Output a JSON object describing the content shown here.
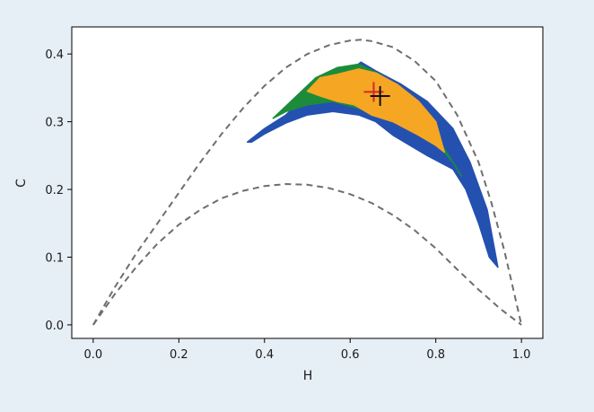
{
  "chart_data": {
    "type": "scatter",
    "xlabel": "H",
    "ylabel": "C",
    "xlim": [
      -0.05,
      1.05
    ],
    "ylim": [
      -0.02,
      0.44
    ],
    "xticks": [
      0.0,
      0.2,
      0.4,
      0.6,
      0.8,
      1.0
    ],
    "xtick_labels": [
      "0.0",
      "0.2",
      "0.4",
      "0.6",
      "0.8",
      "1.0"
    ],
    "yticks": [
      0.0,
      0.1,
      0.2,
      0.3,
      0.4
    ],
    "ytick_labels": [
      "0.0",
      "0.1",
      "0.2",
      "0.3",
      "0.4"
    ],
    "grid": false,
    "legend": false,
    "bounds": [
      {
        "color": "#6e6e6e",
        "dashed": true,
        "points": [
          [
            0.0,
            0.0
          ],
          [
            0.05,
            0.055
          ],
          [
            0.1,
            0.105
          ],
          [
            0.15,
            0.15
          ],
          [
            0.2,
            0.195
          ],
          [
            0.25,
            0.24
          ],
          [
            0.3,
            0.282
          ],
          [
            0.35,
            0.32
          ],
          [
            0.4,
            0.353
          ],
          [
            0.45,
            0.38
          ],
          [
            0.5,
            0.4
          ],
          [
            0.55,
            0.413
          ],
          [
            0.6,
            0.42
          ],
          [
            0.625,
            0.421
          ],
          [
            0.65,
            0.419
          ],
          [
            0.7,
            0.41
          ],
          [
            0.75,
            0.39
          ],
          [
            0.8,
            0.36
          ],
          [
            0.85,
            0.31
          ],
          [
            0.9,
            0.24
          ],
          [
            0.93,
            0.18
          ],
          [
            0.96,
            0.11
          ],
          [
            0.98,
            0.055
          ],
          [
            1.0,
            0.0
          ]
        ]
      },
      {
        "color": "#6e6e6e",
        "dashed": true,
        "points": [
          [
            0.0,
            0.0
          ],
          [
            0.05,
            0.045
          ],
          [
            0.1,
            0.085
          ],
          [
            0.15,
            0.12
          ],
          [
            0.2,
            0.148
          ],
          [
            0.25,
            0.17
          ],
          [
            0.3,
            0.187
          ],
          [
            0.35,
            0.198
          ],
          [
            0.4,
            0.205
          ],
          [
            0.45,
            0.208
          ],
          [
            0.5,
            0.207
          ],
          [
            0.55,
            0.202
          ],
          [
            0.6,
            0.193
          ],
          [
            0.65,
            0.18
          ],
          [
            0.7,
            0.162
          ],
          [
            0.75,
            0.14
          ],
          [
            0.8,
            0.113
          ],
          [
            0.85,
            0.082
          ],
          [
            0.9,
            0.052
          ],
          [
            0.95,
            0.024
          ],
          [
            1.0,
            0.0
          ]
        ]
      }
    ],
    "regions": [
      {
        "color": "#2451b0",
        "points": [
          [
            0.36,
            0.27
          ],
          [
            0.4,
            0.29
          ],
          [
            0.45,
            0.31
          ],
          [
            0.5,
            0.34
          ],
          [
            0.55,
            0.365
          ],
          [
            0.6,
            0.375
          ],
          [
            0.625,
            0.388
          ],
          [
            0.66,
            0.375
          ],
          [
            0.72,
            0.355
          ],
          [
            0.78,
            0.33
          ],
          [
            0.84,
            0.29
          ],
          [
            0.88,
            0.24
          ],
          [
            0.92,
            0.17
          ],
          [
            0.945,
            0.085
          ],
          [
            0.925,
            0.1
          ],
          [
            0.9,
            0.15
          ],
          [
            0.87,
            0.2
          ],
          [
            0.84,
            0.23
          ],
          [
            0.78,
            0.25
          ],
          [
            0.7,
            0.28
          ],
          [
            0.66,
            0.3
          ],
          [
            0.62,
            0.31
          ],
          [
            0.56,
            0.315
          ],
          [
            0.5,
            0.31
          ],
          [
            0.45,
            0.298
          ],
          [
            0.4,
            0.282
          ],
          [
            0.37,
            0.27
          ]
        ]
      },
      {
        "color": "#1c8c3a",
        "points": [
          [
            0.42,
            0.305
          ],
          [
            0.47,
            0.335
          ],
          [
            0.52,
            0.365
          ],
          [
            0.57,
            0.38
          ],
          [
            0.62,
            0.385
          ],
          [
            0.67,
            0.37
          ],
          [
            0.72,
            0.345
          ],
          [
            0.77,
            0.31
          ],
          [
            0.82,
            0.26
          ],
          [
            0.86,
            0.22
          ],
          [
            0.84,
            0.24
          ],
          [
            0.8,
            0.27
          ],
          [
            0.74,
            0.29
          ],
          [
            0.68,
            0.305
          ],
          [
            0.62,
            0.32
          ],
          [
            0.56,
            0.33
          ],
          [
            0.5,
            0.325
          ],
          [
            0.45,
            0.315
          ]
        ]
      },
      {
        "color": "#f5a623",
        "points": [
          [
            0.5,
            0.345
          ],
          [
            0.53,
            0.365
          ],
          [
            0.57,
            0.37
          ],
          [
            0.62,
            0.378
          ],
          [
            0.66,
            0.372
          ],
          [
            0.71,
            0.355
          ],
          [
            0.76,
            0.33
          ],
          [
            0.8,
            0.3
          ],
          [
            0.82,
            0.255
          ],
          [
            0.8,
            0.265
          ],
          [
            0.76,
            0.28
          ],
          [
            0.7,
            0.3
          ],
          [
            0.65,
            0.31
          ],
          [
            0.61,
            0.325
          ],
          [
            0.57,
            0.33
          ],
          [
            0.53,
            0.338
          ]
        ]
      }
    ],
    "markers": [
      {
        "x": 0.655,
        "y": 0.344,
        "color": "#d62728"
      },
      {
        "x": 0.67,
        "y": 0.338,
        "color": "#111111"
      }
    ]
  }
}
